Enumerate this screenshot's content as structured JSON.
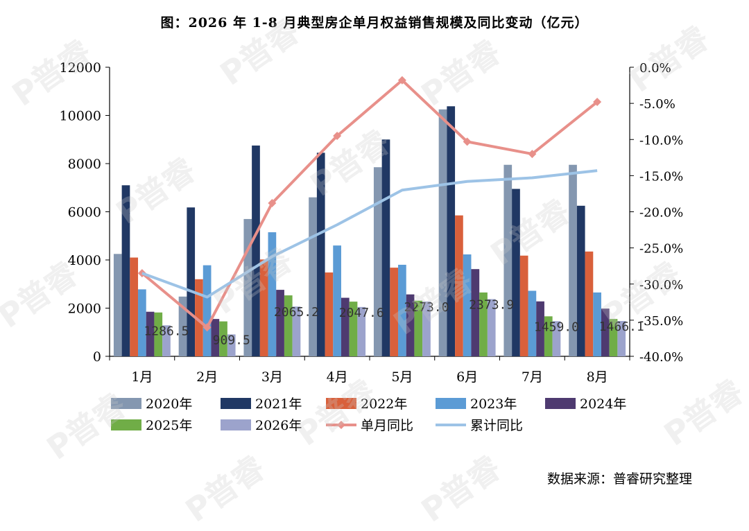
{
  "title": "图：2026 年 1-8 月典型房企单月权益销售规模及同比变动（亿元）",
  "source": "数据来源：普睿研究整理",
  "watermark": "P普睿",
  "chart_data": {
    "type": "bar",
    "categories": [
      "1月",
      "2月",
      "3月",
      "4月",
      "5月",
      "6月",
      "7月",
      "8月"
    ],
    "ylim": [
      0,
      12000
    ],
    "y_ticks": [
      "0",
      "2000",
      "4000",
      "6000",
      "8000",
      "10000",
      "12000"
    ],
    "y2lim": [
      -40,
      0
    ],
    "y2_ticks": [
      "0.0%",
      "-5.0%",
      "-10.0%",
      "-15.0%",
      "-20.0%",
      "-25.0%",
      "-30.0%",
      "-35.0%",
      "-40.0%"
    ],
    "series": [
      {
        "name": "2020年",
        "color": "#8497B0",
        "values": [
          4250,
          2480,
          5700,
          6600,
          7850,
          10250,
          7950,
          7950
        ]
      },
      {
        "name": "2021年",
        "color": "#203864",
        "values": [
          7100,
          6180,
          8750,
          8450,
          9000,
          10380,
          6950,
          6250
        ]
      },
      {
        "name": "2022年",
        "color": "#D9603B",
        "values": [
          4100,
          3200,
          4020,
          3480,
          3680,
          5850,
          4180,
          4350
        ]
      },
      {
        "name": "2023年",
        "color": "#5B9BD5",
        "values": [
          2780,
          3780,
          5150,
          4600,
          3800,
          4230,
          2720,
          2650
        ]
      },
      {
        "name": "2024年",
        "color": "#4E3A70",
        "values": [
          1850,
          1550,
          2760,
          2430,
          2570,
          3620,
          2280,
          1980
        ]
      },
      {
        "name": "2025年",
        "color": "#70AD47",
        "values": [
          1820,
          1450,
          2530,
          2270,
          2310,
          2650,
          1660,
          1550
        ]
      },
      {
        "name": "2026年",
        "color": "#9CA3CC",
        "values": [
          1286.5,
          909.5,
          2065.2,
          2047.6,
          2273.0,
          2373.9,
          1459.0,
          1466.1
        ]
      }
    ],
    "data_labels": [
      "1286.5",
      "909.5",
      "2065.2",
      "2047.6",
      "2273.0",
      "2373.9",
      "1459.0",
      "1466.1"
    ],
    "lines": [
      {
        "name": "单月同比",
        "color": "#E8908A",
        "marker": "diamond",
        "axis": "right",
        "values": [
          -28.5,
          -36.0,
          -18.8,
          -9.5,
          -1.8,
          -10.3,
          -12.0,
          -4.8
        ]
      },
      {
        "name": "累计同比",
        "color": "#9DC3E6",
        "marker": "none",
        "axis": "right",
        "values": [
          -28.5,
          -31.8,
          -26.2,
          -21.8,
          -17.0,
          -15.8,
          -15.3,
          -14.3
        ]
      }
    ]
  }
}
